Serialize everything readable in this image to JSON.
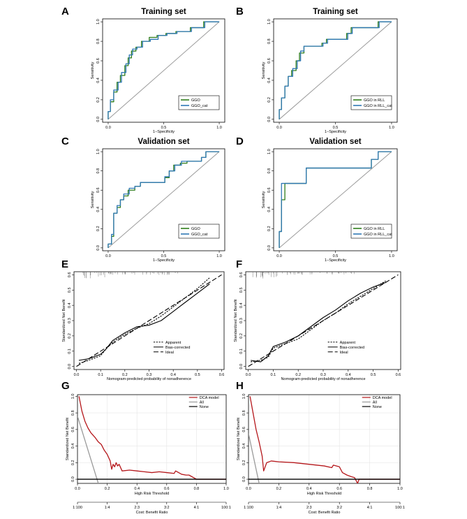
{
  "chart_data": [
    {
      "id": "A",
      "type": "line",
      "title": "Training set",
      "xlabel": "1−Specificity",
      "ylabel": "Sensitivity",
      "xlim": [
        -0.05,
        1.05
      ],
      "ylim": [
        -0.03,
        1.03
      ],
      "xticks": [
        "0.0",
        "0.5",
        "1.0"
      ],
      "yticks": [
        "0.0",
        "0.2",
        "0.4",
        "0.6",
        "0.8",
        "1.0"
      ],
      "diagonal": true,
      "series": [
        {
          "name": "GGO",
          "color": "#2e7d1a",
          "x": [
            0,
            0,
            0.02,
            0.02,
            0.05,
            0.05,
            0.08,
            0.08,
            0.11,
            0.11,
            0.15,
            0.15,
            0.18,
            0.18,
            0.21,
            0.21,
            0.25,
            0.25,
            0.3,
            0.3,
            0.37,
            0.37,
            0.44,
            0.44,
            0.52,
            0.52,
            0.61,
            0.61,
            0.74,
            0.74,
            0.86,
            0.86,
            1.0
          ],
          "y": [
            0,
            0.08,
            0.08,
            0.18,
            0.18,
            0.28,
            0.28,
            0.38,
            0.38,
            0.45,
            0.45,
            0.55,
            0.55,
            0.63,
            0.63,
            0.7,
            0.7,
            0.74,
            0.74,
            0.8,
            0.8,
            0.84,
            0.84,
            0.86,
            0.86,
            0.88,
            0.88,
            0.9,
            0.9,
            0.94,
            0.94,
            1.0,
            1.0
          ]
        },
        {
          "name": "GGO_cat",
          "color": "#2f78b5",
          "x": [
            0,
            0,
            0.02,
            0.02,
            0.05,
            0.05,
            0.09,
            0.09,
            0.12,
            0.12,
            0.16,
            0.16,
            0.19,
            0.19,
            0.22,
            0.22,
            0.26,
            0.26,
            0.31,
            0.31,
            0.38,
            0.38,
            0.45,
            0.45,
            0.53,
            0.53,
            0.62,
            0.62,
            0.75,
            0.75,
            0.87,
            0.87,
            1.0
          ],
          "y": [
            0,
            0.08,
            0.08,
            0.2,
            0.2,
            0.3,
            0.3,
            0.38,
            0.38,
            0.48,
            0.48,
            0.57,
            0.57,
            0.66,
            0.66,
            0.72,
            0.72,
            0.74,
            0.74,
            0.8,
            0.8,
            0.82,
            0.82,
            0.86,
            0.86,
            0.88,
            0.88,
            0.9,
            0.9,
            0.94,
            0.94,
            1.0,
            1.0
          ]
        }
      ]
    },
    {
      "id": "B",
      "type": "line",
      "title": "Training set",
      "xlabel": "1−Specificity",
      "ylabel": "Sensitivity",
      "xlim": [
        -0.05,
        1.05
      ],
      "ylim": [
        -0.03,
        1.03
      ],
      "xticks": [
        "0.0",
        "0.5",
        "1.0"
      ],
      "yticks": [
        "0.0",
        "0.2",
        "0.4",
        "0.6",
        "0.8",
        "1.0"
      ],
      "diagonal": true,
      "series": [
        {
          "name": "GGO in RLL",
          "color": "#2e7d1a",
          "x": [
            0,
            0,
            0.02,
            0.02,
            0.05,
            0.05,
            0.08,
            0.08,
            0.11,
            0.11,
            0.15,
            0.15,
            0.18,
            0.18,
            0.22,
            0.22,
            0.38,
            0.38,
            0.42,
            0.42,
            0.6,
            0.6,
            0.64,
            0.64,
            0.88,
            0.88,
            1.0
          ],
          "y": [
            0,
            0.1,
            0.1,
            0.22,
            0.22,
            0.34,
            0.34,
            0.44,
            0.44,
            0.5,
            0.5,
            0.6,
            0.6,
            0.68,
            0.68,
            0.75,
            0.75,
            0.78,
            0.78,
            0.82,
            0.82,
            0.88,
            0.88,
            0.94,
            0.94,
            1.0,
            1.0
          ]
        },
        {
          "name": "GGO in RLL_cat",
          "color": "#2f78b5",
          "x": [
            0,
            0,
            0.02,
            0.02,
            0.05,
            0.05,
            0.08,
            0.08,
            0.12,
            0.12,
            0.16,
            0.16,
            0.19,
            0.19,
            0.22,
            0.22,
            0.39,
            0.39,
            0.43,
            0.43,
            0.61,
            0.61,
            0.65,
            0.65,
            0.89,
            0.89,
            1.0
          ],
          "y": [
            0,
            0.1,
            0.1,
            0.22,
            0.22,
            0.34,
            0.34,
            0.44,
            0.44,
            0.52,
            0.52,
            0.6,
            0.6,
            0.7,
            0.7,
            0.75,
            0.75,
            0.78,
            0.78,
            0.82,
            0.82,
            0.88,
            0.88,
            0.94,
            0.94,
            1.0,
            1.0
          ]
        }
      ]
    },
    {
      "id": "C",
      "type": "line",
      "title": "Validation set",
      "xlabel": "1−Specificity",
      "ylabel": "Sensitivity",
      "xlim": [
        -0.05,
        1.05
      ],
      "ylim": [
        -0.03,
        1.03
      ],
      "xticks": [
        "0.0",
        "0.5",
        "1.0"
      ],
      "yticks": [
        "0.0",
        "0.2",
        "0.4",
        "0.6",
        "0.8",
        "1.0"
      ],
      "diagonal": true,
      "series": [
        {
          "name": "GGO",
          "color": "#2e7d1a",
          "x": [
            0,
            0,
            0.03,
            0.03,
            0.05,
            0.05,
            0.08,
            0.08,
            0.11,
            0.11,
            0.14,
            0.14,
            0.18,
            0.18,
            0.24,
            0.24,
            0.29,
            0.29,
            0.51,
            0.51,
            0.55,
            0.55,
            0.59,
            0.59,
            0.65,
            0.65,
            0.71,
            0.71,
            0.84,
            0.84,
            0.88,
            0.88,
            1.0
          ],
          "y": [
            0,
            0.04,
            0.04,
            0.12,
            0.12,
            0.36,
            0.36,
            0.42,
            0.42,
            0.5,
            0.5,
            0.54,
            0.54,
            0.6,
            0.6,
            0.64,
            0.64,
            0.68,
            0.68,
            0.73,
            0.73,
            0.8,
            0.8,
            0.86,
            0.86,
            0.88,
            0.88,
            0.9,
            0.9,
            0.94,
            0.94,
            1.0,
            1.0
          ]
        },
        {
          "name": "GGO_cat",
          "color": "#2f78b5",
          "x": [
            0,
            0,
            0.03,
            0.03,
            0.05,
            0.05,
            0.08,
            0.08,
            0.11,
            0.11,
            0.14,
            0.14,
            0.19,
            0.19,
            0.24,
            0.24,
            0.29,
            0.29,
            0.51,
            0.51,
            0.55,
            0.55,
            0.6,
            0.6,
            0.66,
            0.66,
            0.72,
            0.72,
            0.84,
            0.84,
            0.88,
            0.88,
            1.0
          ],
          "y": [
            0,
            0.04,
            0.04,
            0.14,
            0.14,
            0.36,
            0.36,
            0.44,
            0.44,
            0.5,
            0.5,
            0.56,
            0.56,
            0.62,
            0.62,
            0.64,
            0.64,
            0.68,
            0.68,
            0.74,
            0.74,
            0.8,
            0.8,
            0.86,
            0.86,
            0.9,
            0.9,
            0.9,
            0.9,
            0.94,
            0.94,
            1.0,
            1.0
          ]
        }
      ]
    },
    {
      "id": "D",
      "type": "line",
      "title": "Validation set",
      "xlabel": "1−Specificity",
      "ylabel": "Sensitivity",
      "xlim": [
        -0.05,
        1.05
      ],
      "ylim": [
        -0.03,
        1.03
      ],
      "xticks": [
        "0.0",
        "0.5",
        "1.0"
      ],
      "yticks": [
        "0.0",
        "0.2",
        "0.4",
        "0.6",
        "0.8",
        "1.0"
      ],
      "diagonal": true,
      "series": [
        {
          "name": "GGO in RLL",
          "color": "#2e7d1a",
          "x": [
            0,
            0,
            0.02,
            0.02,
            0.05,
            0.05,
            0.24,
            0.24,
            0.82,
            0.82,
            0.88,
            0.88,
            1.0
          ],
          "y": [
            0,
            0.17,
            0.17,
            0.5,
            0.5,
            0.67,
            0.67,
            0.83,
            0.83,
            0.92,
            0.92,
            1.0,
            1.0
          ]
        },
        {
          "name": "GGO in RLL_cat",
          "color": "#2f78b5",
          "x": [
            0,
            0,
            0.02,
            0.02,
            0.24,
            0.24,
            0.82,
            0.82,
            0.88,
            0.88,
            1.0
          ],
          "y": [
            0,
            0.17,
            0.17,
            0.67,
            0.67,
            0.83,
            0.83,
            0.92,
            0.92,
            1.0,
            1.0
          ]
        }
      ]
    },
    {
      "id": "E",
      "type": "line",
      "title": "",
      "xlabel": "Nomogram-predicted probability of nonadherence",
      "ylabel": "Standardized Net Benefit",
      "xlim": [
        -0.01,
        0.61
      ],
      "ylim": [
        -0.02,
        0.62
      ],
      "xticks": [
        "0.0",
        "0.1",
        "0.2",
        "0.3",
        "0.4",
        "0.5",
        "0.6"
      ],
      "yticks": [
        "0.0",
        "0.1",
        "0.2",
        "0.3",
        "0.4",
        "0.5",
        "0.6"
      ],
      "rug": true,
      "series": [
        {
          "name": "Apparent",
          "dash": "2.2,1.6",
          "x": [
            0.01,
            0.05,
            0.1,
            0.12,
            0.15,
            0.2,
            0.25,
            0.3,
            0.35,
            0.4,
            0.45,
            0.5,
            0.55
          ],
          "y": [
            0.02,
            0.04,
            0.07,
            0.11,
            0.16,
            0.21,
            0.25,
            0.28,
            0.33,
            0.39,
            0.45,
            0.51,
            0.58
          ]
        },
        {
          "name": "Bias-corrected",
          "dash": "",
          "x": [
            0.01,
            0.05,
            0.1,
            0.12,
            0.15,
            0.2,
            0.25,
            0.3,
            0.35,
            0.4,
            0.45,
            0.5,
            0.55
          ],
          "y": [
            0.04,
            0.05,
            0.08,
            0.11,
            0.17,
            0.22,
            0.26,
            0.27,
            0.3,
            0.36,
            0.42,
            0.48,
            0.54
          ]
        },
        {
          "name": "Ideal",
          "dash": "7,3",
          "x": [
            0.0,
            0.6
          ],
          "y": [
            0.0,
            0.6
          ]
        }
      ]
    },
    {
      "id": "F",
      "type": "line",
      "title": "",
      "xlabel": "Nomogram-predicted probability of nonadherence",
      "ylabel": "Standardized Net Benefit",
      "xlim": [
        -0.01,
        0.61
      ],
      "ylim": [
        -0.02,
        0.62
      ],
      "xticks": [
        "0.0",
        "0.1",
        "0.2",
        "0.3",
        "0.4",
        "0.5",
        "0.6"
      ],
      "yticks": [
        "0.0",
        "0.1",
        "0.2",
        "0.3",
        "0.4",
        "0.5",
        "0.6"
      ],
      "rug": true,
      "series": [
        {
          "name": "Apparent",
          "dash": "2.2,1.6",
          "x": [
            0.01,
            0.05,
            0.08,
            0.1,
            0.15,
            0.2,
            0.25,
            0.3,
            0.35,
            0.4,
            0.45,
            0.5,
            0.55
          ],
          "y": [
            0.03,
            0.04,
            0.06,
            0.12,
            0.15,
            0.18,
            0.24,
            0.3,
            0.35,
            0.41,
            0.46,
            0.51,
            0.56
          ]
        },
        {
          "name": "Bias-corrected",
          "dash": "",
          "x": [
            0.01,
            0.05,
            0.08,
            0.1,
            0.15,
            0.2,
            0.25,
            0.3,
            0.35,
            0.4,
            0.45,
            0.5,
            0.55
          ],
          "y": [
            0.04,
            0.03,
            0.07,
            0.13,
            0.16,
            0.2,
            0.26,
            0.32,
            0.37,
            0.43,
            0.48,
            0.52,
            0.55
          ]
        },
        {
          "name": "Ideal",
          "dash": "7,3",
          "x": [
            0.0,
            0.6
          ],
          "y": [
            0.0,
            0.6
          ]
        }
      ]
    },
    {
      "id": "G",
      "type": "line",
      "title": "",
      "xlabel": "High Risk Threshold",
      "ylabel": "Standardized Net Benefit",
      "x2label": "Cost: Benefit Ratio",
      "xlim": [
        0,
        1
      ],
      "ylim": [
        -0.05,
        1.02
      ],
      "xticks": [
        "0.0",
        "0.2",
        "0.4",
        "0.6",
        "0.8",
        "1.0"
      ],
      "yticks": [
        "0.0",
        "0.2",
        "0.4",
        "0.6",
        "0.8",
        "1.0"
      ],
      "x2ticks": [
        "1:100",
        "1:4",
        "2:3",
        "3:2",
        "4:1",
        "100:1"
      ],
      "grid": true,
      "series": [
        {
          "name": "DCA model",
          "color": "#b5171b",
          "x": [
            0.01,
            0.03,
            0.05,
            0.07,
            0.09,
            0.12,
            0.14,
            0.16,
            0.18,
            0.2,
            0.22,
            0.23,
            0.24,
            0.25,
            0.26,
            0.27,
            0.28,
            0.3,
            0.35,
            0.4,
            0.45,
            0.5,
            0.55,
            0.6,
            0.65,
            0.66,
            0.7,
            0.73,
            0.75,
            0.77,
            0.8,
            1.0
          ],
          "y": [
            1.0,
            0.82,
            0.7,
            0.62,
            0.56,
            0.5,
            0.45,
            0.42,
            0.35,
            0.3,
            0.22,
            0.12,
            0.18,
            0.15,
            0.2,
            0.16,
            0.18,
            0.1,
            0.11,
            0.1,
            0.09,
            0.08,
            0.09,
            0.08,
            0.07,
            0.1,
            0.06,
            0.05,
            0.05,
            0.03,
            0.0,
            0.0
          ]
        },
        {
          "name": "All",
          "color": "#9a9a9a",
          "x": [
            0.0,
            0.14
          ],
          "y": [
            0.76,
            -0.05
          ]
        },
        {
          "name": "None",
          "color": "#000000",
          "x": [
            0.0,
            1.0
          ],
          "y": [
            0.0,
            0.0
          ]
        }
      ]
    },
    {
      "id": "H",
      "type": "line",
      "title": "",
      "xlabel": "High Risk Threshold",
      "ylabel": "Standardized Net Benefit",
      "x2label": "Cost: Benefit Ratio",
      "xlim": [
        0,
        1
      ],
      "ylim": [
        -0.05,
        1.02
      ],
      "xticks": [
        "0.0",
        "0.2",
        "0.4",
        "0.6",
        "0.8",
        "1.0"
      ],
      "yticks": [
        "0.0",
        "0.2",
        "0.4",
        "0.6",
        "0.8",
        "1.0"
      ],
      "x2ticks": [
        "1:100",
        "1:4",
        "2:3",
        "3:2",
        "4:1",
        "100:1"
      ],
      "grid": true,
      "series": [
        {
          "name": "DCA model",
          "color": "#b5171b",
          "x": [
            0.01,
            0.03,
            0.05,
            0.07,
            0.09,
            0.1,
            0.12,
            0.15,
            0.2,
            0.3,
            0.4,
            0.5,
            0.55,
            0.56,
            0.6,
            0.62,
            0.65,
            0.68,
            0.7,
            0.72,
            0.73,
            0.8,
            1.0
          ],
          "y": [
            1.0,
            0.8,
            0.6,
            0.45,
            0.28,
            0.1,
            0.2,
            0.22,
            0.21,
            0.2,
            0.18,
            0.16,
            0.14,
            0.17,
            0.15,
            0.08,
            0.05,
            0.03,
            0.02,
            -0.05,
            0.0,
            0.0,
            0.0
          ]
        },
        {
          "name": "All",
          "color": "#9a9a9a",
          "x": [
            0.0,
            0.07
          ],
          "y": [
            0.55,
            -0.05
          ]
        },
        {
          "name": "None",
          "color": "#000000",
          "x": [
            0.0,
            1.0
          ],
          "y": [
            0.0,
            0.0
          ]
        }
      ]
    }
  ]
}
